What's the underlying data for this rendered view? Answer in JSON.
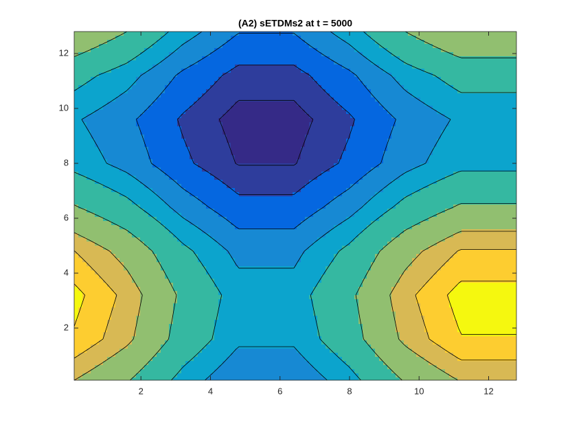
{
  "chart_data": {
    "type": "contour",
    "title": "(A2) sETDMs2 at t = 5000",
    "x": [
      0,
      1.6,
      3.2,
      4.8,
      6.4,
      8,
      9.6,
      11.2,
      12.8
    ],
    "y": [
      0,
      1.6,
      3.2,
      4.8,
      6.4,
      8,
      9.6,
      11.2,
      12.8
    ],
    "z": [
      [
        1.18,
        0.6,
        -0.2,
        -0.78,
        -0.78,
        -0.2,
        0.6,
        1.18,
        1.18
      ],
      [
        1.98,
        1.31,
        0.36,
        -0.32,
        -0.32,
        0.36,
        1.31,
        1.98,
        1.98
      ],
      [
        2.17,
        1.47,
        0.49,
        -0.21,
        -0.21,
        0.49,
        1.47,
        2.17,
        2.17
      ],
      [
        1.64,
        1.0,
        0.12,
        -0.52,
        -0.52,
        0.12,
        1.0,
        1.64,
        1.64
      ],
      [
        0.67,
        0.16,
        -0.56,
        -1.07,
        -1.07,
        -0.56,
        0.16,
        0.67,
        0.67
      ],
      [
        -0.14,
        -0.55,
        -1.12,
        -1.52,
        -1.52,
        -1.12,
        -0.55,
        -0.14,
        -0.14
      ],
      [
        -0.33,
        -0.71,
        -1.25,
        -1.63,
        -1.63,
        -1.25,
        -0.71,
        -0.33,
        -0.33
      ],
      [
        0.21,
        -0.24,
        -0.88,
        -1.33,
        -1.33,
        -0.88,
        -0.24,
        0.21,
        0.21
      ],
      [
        1.18,
        0.6,
        -0.2,
        -0.78,
        -0.78,
        -0.2,
        0.6,
        1.18,
        1.18
      ]
    ],
    "levels": [
      -1.5,
      -1.2,
      -0.8,
      -0.4,
      0,
      0.6,
      1.2,
      1.6,
      2.0
    ],
    "colors": [
      "#352a87",
      "#2e3d9c",
      "#0567e0",
      "#1789d3",
      "#0ca4cd",
      "#35b8a1",
      "#91bf70",
      "#d8b954",
      "#fdcd30",
      "#f5f80f"
    ],
    "xlim": [
      0.08,
      12.8
    ],
    "ylim": [
      0.1,
      12.8
    ],
    "xticks": [
      2,
      4,
      6,
      8,
      10,
      12
    ],
    "yticks": [
      2,
      4,
      6,
      8,
      10,
      12
    ]
  }
}
